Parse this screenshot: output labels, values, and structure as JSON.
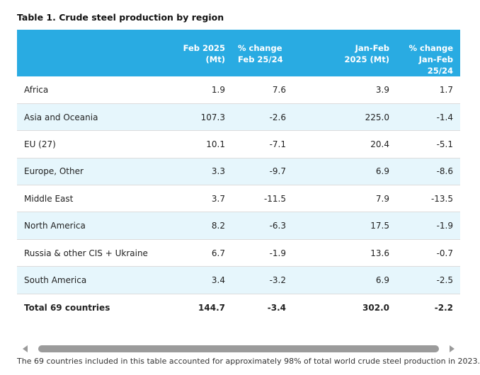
{
  "caption": "Table 1. Crude steel production by region",
  "headers": {
    "col2_line1": "Feb 2025",
    "col2_line2": "(Mt)",
    "col3_line1": "% change",
    "col3_line2": "Feb 25/24",
    "col4_line1": "Jan-Feb",
    "col4_line2": "2025 (Mt)",
    "col5_line1": "% change",
    "col5_line2": "Jan-Feb",
    "col5_line3": "25/24"
  },
  "rows": [
    {
      "region": "Africa",
      "feb": "1.9",
      "feb_change": "7.6",
      "janfeb": "3.9",
      "janfeb_change": "1.7"
    },
    {
      "region": "Asia and Oceania",
      "feb": "107.3",
      "feb_change": "-2.6",
      "janfeb": "225.0",
      "janfeb_change": "-1.4"
    },
    {
      "region": "EU (27)",
      "feb": "10.1",
      "feb_change": "-7.1",
      "janfeb": "20.4",
      "janfeb_change": "-5.1"
    },
    {
      "region": "Europe, Other",
      "feb": "3.3",
      "feb_change": "-9.7",
      "janfeb": "6.9",
      "janfeb_change": "-8.6"
    },
    {
      "region": "Middle East",
      "feb": "3.7",
      "feb_change": "-11.5",
      "janfeb": "7.9",
      "janfeb_change": "-13.5"
    },
    {
      "region": "North America",
      "feb": "8.2",
      "feb_change": "-6.3",
      "janfeb": "17.5",
      "janfeb_change": "-1.9"
    },
    {
      "region": "Russia & other CIS + Ukraine",
      "feb": "6.7",
      "feb_change": "-1.9",
      "janfeb": "13.6",
      "janfeb_change": "-0.7"
    },
    {
      "region": "South America",
      "feb": "3.4",
      "feb_change": "-3.2",
      "janfeb": "6.9",
      "janfeb_change": "-2.5"
    }
  ],
  "total": {
    "region": "Total 69 countries",
    "feb": "144.7",
    "feb_change": "-3.4",
    "janfeb": "302.0",
    "janfeb_change": "-2.2"
  },
  "footnote": "The 69 countries included in this table accounted for approximately 98% of total world crude steel production in 2023.",
  "colors": {
    "header_bg": "#29abe2",
    "stripe_bg": "#e6f6fc",
    "scroll_thumb": "#9b9b9b"
  }
}
